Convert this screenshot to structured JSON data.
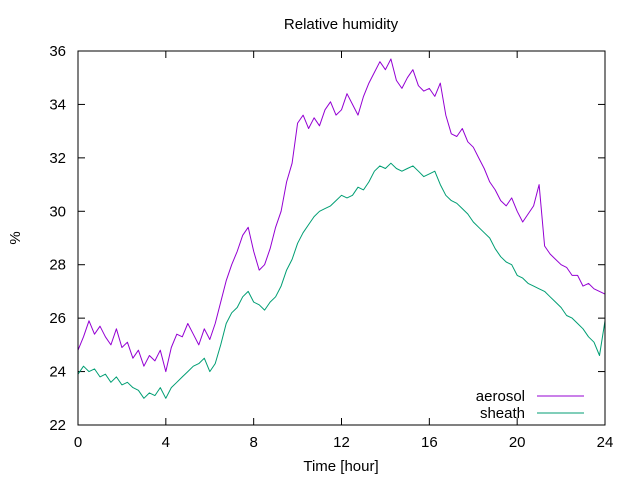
{
  "chart_data": {
    "type": "line",
    "title": "Relative humidity",
    "xlabel": "Time [hour]",
    "ylabel": "%",
    "xlim": [
      0,
      24
    ],
    "ylim": [
      22,
      36
    ],
    "xticks": [
      0,
      4,
      8,
      12,
      16,
      20,
      24
    ],
    "yticks": [
      22,
      24,
      26,
      28,
      30,
      32,
      34,
      36
    ],
    "grid": false,
    "legend_position": "bottom-right",
    "series": [
      {
        "name": "aerosol",
        "color": "#9400d3",
        "x": [
          0,
          0.25,
          0.5,
          0.75,
          1,
          1.25,
          1.5,
          1.75,
          2,
          2.25,
          2.5,
          2.75,
          3,
          3.25,
          3.5,
          3.75,
          4,
          4.25,
          4.5,
          4.75,
          5,
          5.25,
          5.5,
          5.75,
          6,
          6.25,
          6.5,
          6.75,
          7,
          7.25,
          7.5,
          7.75,
          8,
          8.25,
          8.5,
          8.75,
          9,
          9.25,
          9.5,
          9.75,
          10,
          10.25,
          10.5,
          10.75,
          11,
          11.25,
          11.5,
          11.75,
          12,
          12.25,
          12.5,
          12.75,
          13,
          13.25,
          13.5,
          13.75,
          14,
          14.25,
          14.5,
          14.75,
          15,
          15.25,
          15.5,
          15.75,
          16,
          16.25,
          16.5,
          16.75,
          17,
          17.25,
          17.5,
          17.75,
          18,
          18.25,
          18.5,
          18.75,
          19,
          19.25,
          19.5,
          19.75,
          20,
          20.25,
          20.5,
          20.75,
          21,
          21.25,
          21.5,
          21.75,
          22,
          22.25,
          22.5,
          22.75,
          23,
          23.25,
          23.5,
          23.75,
          24
        ],
        "y": [
          24.8,
          25.3,
          25.9,
          25.4,
          25.7,
          25.3,
          25.0,
          25.6,
          24.9,
          25.1,
          24.5,
          24.8,
          24.2,
          24.6,
          24.4,
          24.8,
          24.0,
          24.9,
          25.4,
          25.3,
          25.8,
          25.4,
          25.0,
          25.6,
          25.2,
          25.8,
          26.6,
          27.4,
          28.0,
          28.5,
          29.1,
          29.4,
          28.5,
          27.8,
          28.0,
          28.6,
          29.4,
          30.0,
          31.1,
          31.8,
          33.3,
          33.6,
          33.1,
          33.5,
          33.2,
          33.8,
          34.1,
          33.6,
          33.8,
          34.4,
          34.0,
          33.6,
          34.3,
          34.8,
          35.2,
          35.6,
          35.3,
          35.7,
          34.9,
          34.6,
          35.0,
          35.3,
          34.7,
          34.5,
          34.6,
          34.3,
          34.8,
          33.6,
          32.9,
          32.8,
          33.1,
          32.6,
          32.4,
          32.0,
          31.6,
          31.1,
          30.8,
          30.4,
          30.2,
          30.5,
          30.0,
          29.6,
          29.9,
          30.2,
          31.0,
          28.7,
          28.4,
          28.2,
          28.0,
          27.9,
          27.6,
          27.6,
          27.2,
          27.3,
          27.1,
          27.0,
          26.9
        ]
      },
      {
        "name": "sheath",
        "color": "#009e73",
        "x": [
          0,
          0.25,
          0.5,
          0.75,
          1,
          1.25,
          1.5,
          1.75,
          2,
          2.25,
          2.5,
          2.75,
          3,
          3.25,
          3.5,
          3.75,
          4,
          4.25,
          4.5,
          4.75,
          5,
          5.25,
          5.5,
          5.75,
          6,
          6.25,
          6.5,
          6.75,
          7,
          7.25,
          7.5,
          7.75,
          8,
          8.25,
          8.5,
          8.75,
          9,
          9.25,
          9.5,
          9.75,
          10,
          10.25,
          10.5,
          10.75,
          11,
          11.25,
          11.5,
          11.75,
          12,
          12.25,
          12.5,
          12.75,
          13,
          13.25,
          13.5,
          13.75,
          14,
          14.25,
          14.5,
          14.75,
          15,
          15.25,
          15.5,
          15.75,
          16,
          16.25,
          16.5,
          16.75,
          17,
          17.25,
          17.5,
          17.75,
          18,
          18.25,
          18.5,
          18.75,
          19,
          19.25,
          19.5,
          19.75,
          20,
          20.25,
          20.5,
          20.75,
          21,
          21.25,
          21.5,
          21.75,
          22,
          22.25,
          22.5,
          22.75,
          23,
          23.25,
          23.5,
          23.75,
          24
        ],
        "y": [
          23.9,
          24.2,
          24.0,
          24.1,
          23.8,
          23.9,
          23.6,
          23.8,
          23.5,
          23.6,
          23.4,
          23.3,
          23.0,
          23.2,
          23.1,
          23.4,
          23.0,
          23.4,
          23.6,
          23.8,
          24.0,
          24.2,
          24.3,
          24.5,
          24.0,
          24.3,
          25.0,
          25.8,
          26.2,
          26.4,
          26.8,
          27.0,
          26.6,
          26.5,
          26.3,
          26.6,
          26.8,
          27.2,
          27.8,
          28.2,
          28.8,
          29.2,
          29.5,
          29.8,
          30.0,
          30.1,
          30.2,
          30.4,
          30.6,
          30.5,
          30.6,
          30.9,
          30.8,
          31.1,
          31.5,
          31.7,
          31.6,
          31.8,
          31.6,
          31.5,
          31.6,
          31.7,
          31.5,
          31.3,
          31.4,
          31.5,
          31.0,
          30.6,
          30.4,
          30.3,
          30.1,
          29.9,
          29.6,
          29.4,
          29.2,
          29.0,
          28.6,
          28.3,
          28.1,
          28.0,
          27.6,
          27.5,
          27.3,
          27.2,
          27.1,
          27.0,
          26.8,
          26.6,
          26.4,
          26.1,
          26.0,
          25.8,
          25.6,
          25.3,
          25.1,
          24.6,
          25.9
        ]
      }
    ]
  }
}
